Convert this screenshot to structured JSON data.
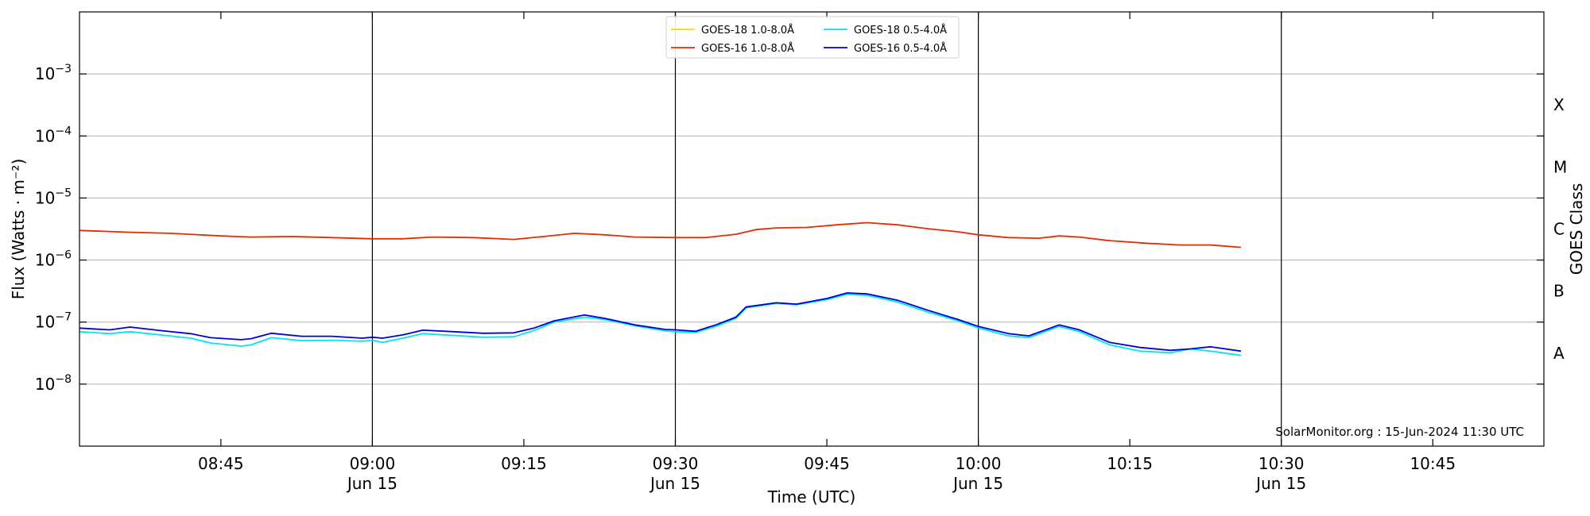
{
  "chart_data": {
    "type": "line",
    "title": "",
    "xlabel": "Time (UTC)",
    "ylabel": "Flux (Watts · m⁻²)",
    "right_label": "GOES Class",
    "yscale": "log",
    "xlim": [
      "08:31",
      "10:56"
    ],
    "ylim": [
      1e-09,
      0.01
    ],
    "grid": "horizontal",
    "legend_position": "top-center",
    "annotation": "SolarMonitor.org : 15-Jun-2024 11:30 UTC",
    "x_ticks": [
      {
        "time": "08:45",
        "label": "08:45",
        "date": ""
      },
      {
        "time": "09:00",
        "label": "09:00",
        "date": "Jun 15"
      },
      {
        "time": "09:15",
        "label": "09:15",
        "date": ""
      },
      {
        "time": "09:30",
        "label": "09:30",
        "date": "Jun 15"
      },
      {
        "time": "09:45",
        "label": "09:45",
        "date": ""
      },
      {
        "time": "10:00",
        "label": "10:00",
        "date": "Jun 15"
      },
      {
        "time": "10:15",
        "label": "10:15",
        "date": ""
      },
      {
        "time": "10:30",
        "label": "10:30",
        "date": "Jun 15"
      },
      {
        "time": "10:45",
        "label": "10:45",
        "date": ""
      }
    ],
    "y_ticks": [
      {
        "value": 1e-08,
        "base": "10",
        "exp": "−8"
      },
      {
        "value": 1e-07,
        "base": "10",
        "exp": "−7"
      },
      {
        "value": 1e-06,
        "base": "10",
        "exp": "−6"
      },
      {
        "value": 1e-05,
        "base": "10",
        "exp": "−5"
      },
      {
        "value": 0.0001,
        "base": "10",
        "exp": "−4"
      },
      {
        "value": 0.001,
        "base": "10",
        "exp": "−3"
      }
    ],
    "day_lines": [
      "09:00",
      "09:30",
      "10:00",
      "10:30"
    ],
    "goes_classes": [
      {
        "label": "A",
        "value": 3.16e-08
      },
      {
        "label": "B",
        "value": 3.16e-07
      },
      {
        "label": "C",
        "value": 3.16e-06
      },
      {
        "label": "M",
        "value": 3.16e-05
      },
      {
        "label": "X",
        "value": 0.000316
      }
    ],
    "series": [
      {
        "name": "GOES-18 1.0-8.0Å",
        "color": "#ffd700",
        "points": []
      },
      {
        "name": "GOES-16 1.0-8.0Å",
        "color": "#e52b00",
        "points": [
          [
            "08:31",
            3e-06
          ],
          [
            "08:36",
            2.8e-06
          ],
          [
            "08:40",
            2.7e-06
          ],
          [
            "08:45",
            2.45e-06
          ],
          [
            "08:48",
            2.35e-06
          ],
          [
            "08:52",
            2.4e-06
          ],
          [
            "08:56",
            2.3e-06
          ],
          [
            "09:00",
            2.2e-06
          ],
          [
            "09:03",
            2.2e-06
          ],
          [
            "09:06",
            2.35e-06
          ],
          [
            "09:10",
            2.3e-06
          ],
          [
            "09:14",
            2.15e-06
          ],
          [
            "09:17",
            2.4e-06
          ],
          [
            "09:20",
            2.7e-06
          ],
          [
            "09:23",
            2.55e-06
          ],
          [
            "09:26",
            2.35e-06
          ],
          [
            "09:30",
            2.3e-06
          ],
          [
            "09:33",
            2.3e-06
          ],
          [
            "09:36",
            2.6e-06
          ],
          [
            "09:38",
            3.1e-06
          ],
          [
            "09:40",
            3.3e-06
          ],
          [
            "09:43",
            3.35e-06
          ],
          [
            "09:46",
            3.7e-06
          ],
          [
            "09:49",
            4e-06
          ],
          [
            "09:52",
            3.7e-06
          ],
          [
            "09:55",
            3.2e-06
          ],
          [
            "09:58",
            2.85e-06
          ],
          [
            "10:00",
            2.55e-06
          ],
          [
            "10:03",
            2.3e-06
          ],
          [
            "10:06",
            2.25e-06
          ],
          [
            "10:08",
            2.45e-06
          ],
          [
            "10:10",
            2.35e-06
          ],
          [
            "10:13",
            2.05e-06
          ],
          [
            "10:17",
            1.85e-06
          ],
          [
            "10:20",
            1.75e-06
          ],
          [
            "10:23",
            1.75e-06
          ],
          [
            "10:26",
            1.6e-06
          ]
        ]
      },
      {
        "name": "GOES-18 0.5-4.0Å",
        "color": "#00e5ee",
        "points": [
          [
            "08:31",
            7e-08
          ],
          [
            "08:34",
            6.5e-08
          ],
          [
            "08:36",
            7e-08
          ],
          [
            "08:39",
            6.2e-08
          ],
          [
            "08:42",
            5.5e-08
          ],
          [
            "08:44",
            4.6e-08
          ],
          [
            "08:47",
            4.1e-08
          ],
          [
            "08:48",
            4.3e-08
          ],
          [
            "08:50",
            5.6e-08
          ],
          [
            "08:53",
            5e-08
          ],
          [
            "08:56",
            5.1e-08
          ],
          [
            "08:59",
            4.9e-08
          ],
          [
            "09:00",
            5.1e-08
          ],
          [
            "09:01",
            4.7e-08
          ],
          [
            "09:03",
            5.5e-08
          ],
          [
            "09:05",
            6.5e-08
          ],
          [
            "09:08",
            6.1e-08
          ],
          [
            "09:11",
            5.7e-08
          ],
          [
            "09:14",
            5.8e-08
          ],
          [
            "09:16",
            7.3e-08
          ],
          [
            "09:18",
            1e-07
          ],
          [
            "09:21",
            1.2e-07
          ],
          [
            "09:23",
            1.1e-07
          ],
          [
            "09:26",
            8.7e-08
          ],
          [
            "09:29",
            7.2e-08
          ],
          [
            "09:30",
            7e-08
          ],
          [
            "09:32",
            6.8e-08
          ],
          [
            "09:34",
            8.5e-08
          ],
          [
            "09:36",
            1.15e-07
          ],
          [
            "09:37",
            1.7e-07
          ],
          [
            "09:40",
            2e-07
          ],
          [
            "09:42",
            1.9e-07
          ],
          [
            "09:45",
            2.3e-07
          ],
          [
            "09:47",
            2.8e-07
          ],
          [
            "09:49",
            2.7e-07
          ],
          [
            "09:52",
            2.1e-07
          ],
          [
            "09:55",
            1.45e-07
          ],
          [
            "09:58",
            1.05e-07
          ],
          [
            "10:00",
            8e-08
          ],
          [
            "10:03",
            6e-08
          ],
          [
            "10:05",
            5.6e-08
          ],
          [
            "10:08",
            8.5e-08
          ],
          [
            "10:10",
            7e-08
          ],
          [
            "10:13",
            4.3e-08
          ],
          [
            "10:16",
            3.4e-08
          ],
          [
            "10:19",
            3.2e-08
          ],
          [
            "10:21",
            3.7e-08
          ],
          [
            "10:23",
            3.4e-08
          ],
          [
            "10:26",
            2.9e-08
          ]
        ]
      },
      {
        "name": "GOES-16 0.5-4.0Å",
        "color": "#0000d8",
        "points": [
          [
            "08:31",
            8e-08
          ],
          [
            "08:34",
            7.5e-08
          ],
          [
            "08:36",
            8.3e-08
          ],
          [
            "08:39",
            7.3e-08
          ],
          [
            "08:42",
            6.5e-08
          ],
          [
            "08:44",
            5.6e-08
          ],
          [
            "08:47",
            5.2e-08
          ],
          [
            "08:48",
            5.4e-08
          ],
          [
            "08:50",
            6.6e-08
          ],
          [
            "08:53",
            5.9e-08
          ],
          [
            "08:56",
            5.9e-08
          ],
          [
            "08:59",
            5.5e-08
          ],
          [
            "09:00",
            5.7e-08
          ],
          [
            "09:01",
            5.5e-08
          ],
          [
            "09:03",
            6.2e-08
          ],
          [
            "09:05",
            7.4e-08
          ],
          [
            "09:08",
            7e-08
          ],
          [
            "09:11",
            6.6e-08
          ],
          [
            "09:14",
            6.7e-08
          ],
          [
            "09:16",
            8e-08
          ],
          [
            "09:18",
            1.05e-07
          ],
          [
            "09:21",
            1.3e-07
          ],
          [
            "09:23",
            1.15e-07
          ],
          [
            "09:26",
            9e-08
          ],
          [
            "09:29",
            7.6e-08
          ],
          [
            "09:30",
            7.5e-08
          ],
          [
            "09:32",
            7.1e-08
          ],
          [
            "09:34",
            9e-08
          ],
          [
            "09:36",
            1.2e-07
          ],
          [
            "09:37",
            1.75e-07
          ],
          [
            "09:40",
            2.05e-07
          ],
          [
            "09:42",
            1.95e-07
          ],
          [
            "09:45",
            2.4e-07
          ],
          [
            "09:47",
            2.95e-07
          ],
          [
            "09:49",
            2.85e-07
          ],
          [
            "09:52",
            2.25e-07
          ],
          [
            "09:55",
            1.55e-07
          ],
          [
            "09:58",
            1.1e-07
          ],
          [
            "10:00",
            8.5e-08
          ],
          [
            "10:03",
            6.5e-08
          ],
          [
            "10:05",
            6e-08
          ],
          [
            "10:08",
            9e-08
          ],
          [
            "10:10",
            7.5e-08
          ],
          [
            "10:13",
            4.7e-08
          ],
          [
            "10:16",
            3.9e-08
          ],
          [
            "10:19",
            3.5e-08
          ],
          [
            "10:21",
            3.7e-08
          ],
          [
            "10:23",
            4e-08
          ],
          [
            "10:26",
            3.4e-08
          ]
        ]
      }
    ]
  }
}
